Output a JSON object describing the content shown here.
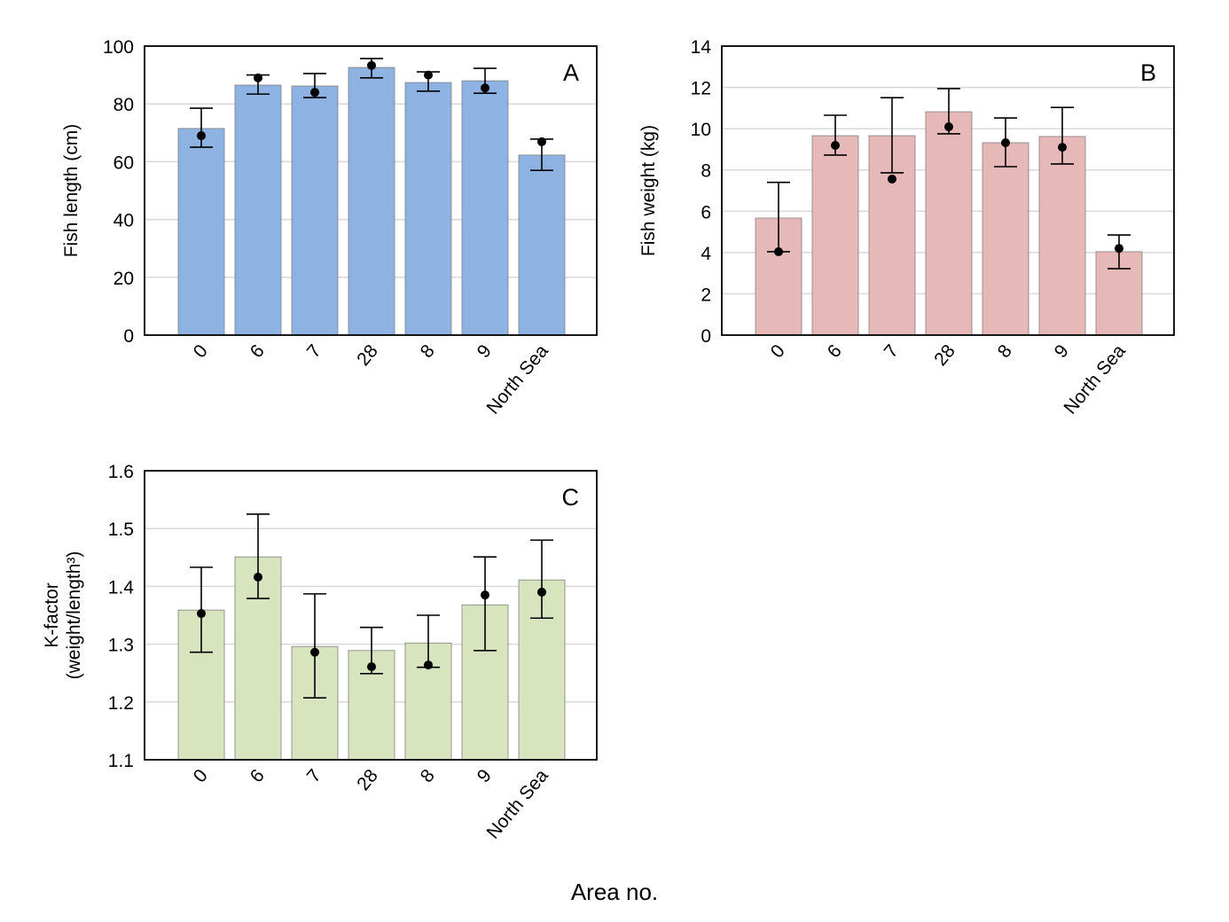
{
  "shared_xlabel": "Area no.",
  "colors": {
    "A": "#8eb2e2",
    "B": "#e6b8b7",
    "C": "#d7e4bd",
    "grid": "#d9d9d9"
  },
  "chart_data": [
    {
      "type": "bar",
      "panel_label": "A",
      "ylabel": "Fish length (cm)",
      "ylabel2": "",
      "ylim": [
        0,
        100
      ],
      "yticks": [
        "0",
        "20",
        "40",
        "60",
        "80",
        "100"
      ],
      "grid": true,
      "categories": [
        "0",
        "6",
        "7",
        "28",
        "8",
        "9",
        "North Sea"
      ],
      "values": [
        71.5,
        86.5,
        86.2,
        92.6,
        87.4,
        88.0,
        62.3
      ],
      "points": [
        69.0,
        89.0,
        84.0,
        93.3,
        90.0,
        85.5,
        66.9
      ],
      "error_high": [
        78.5,
        90.0,
        90.5,
        95.7,
        91.1,
        92.3,
        67.8
      ],
      "error_low": [
        65.0,
        83.4,
        82.2,
        89.0,
        84.4,
        83.7,
        57.0
      ]
    },
    {
      "type": "bar",
      "panel_label": "B",
      "ylabel": "Fish weight (kg)",
      "ylabel2": "",
      "ylim": [
        0,
        14
      ],
      "yticks": [
        "0",
        "2",
        "4",
        "6",
        "8",
        "10",
        "12",
        "14"
      ],
      "grid": true,
      "categories": [
        "0",
        "6",
        "7",
        "28",
        "8",
        "9",
        "North Sea"
      ],
      "values": [
        5.67,
        9.66,
        9.66,
        10.82,
        9.32,
        9.62,
        4.04
      ],
      "points": [
        4.04,
        9.19,
        7.56,
        10.09,
        9.32,
        9.1,
        4.2
      ],
      "error_high": [
        7.4,
        10.65,
        11.5,
        11.94,
        10.52,
        11.03,
        4.85
      ],
      "error_low": [
        4.04,
        8.72,
        7.86,
        9.75,
        8.16,
        8.29,
        3.22
      ]
    },
    {
      "type": "bar",
      "panel_label": "C",
      "ylabel": "K-factor",
      "ylabel2": "(weight/length³)",
      "ylim": [
        1.1,
        1.6
      ],
      "yticks": [
        "1.1",
        "1.2",
        "1.3",
        "1.4",
        "1.5",
        "1.6"
      ],
      "grid": true,
      "categories": [
        "0",
        "6",
        "7",
        "28",
        "8",
        "9",
        "North Sea"
      ],
      "values": [
        1.359,
        1.451,
        1.296,
        1.289,
        1.302,
        1.368,
        1.411
      ],
      "points": [
        1.353,
        1.416,
        1.286,
        1.261,
        1.264,
        1.385,
        1.39
      ],
      "error_high": [
        1.433,
        1.525,
        1.387,
        1.329,
        1.35,
        1.451,
        1.48
      ],
      "error_low": [
        1.286,
        1.379,
        1.207,
        1.249,
        1.26,
        1.289,
        1.345
      ]
    }
  ]
}
